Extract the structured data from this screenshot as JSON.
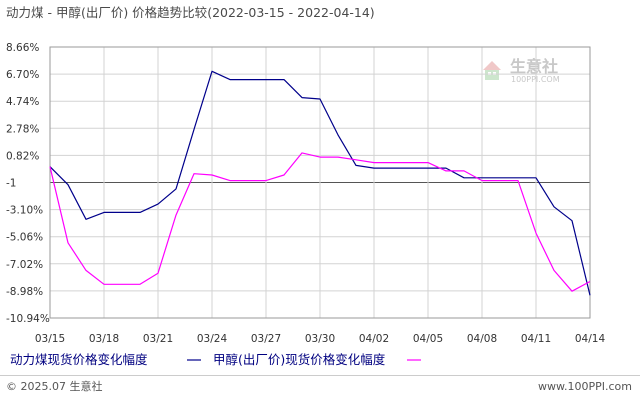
{
  "title": "动力煤 - 甲醇(出厂价) 价格趋势比较",
  "date_range": "(2022-03-15 - 2022-04-14)",
  "watermark": {
    "name": "生意社",
    "url": "100PPI.COM"
  },
  "footer": {
    "copyright": "© 2025.07 生意社",
    "url": "www.100PPI.com"
  },
  "colors": {
    "series1": "#00008b",
    "series2": "#ff00ff",
    "grid": "#d3d3d3",
    "zero_line": "#555555"
  },
  "chart_data": {
    "type": "line",
    "x": [
      "03/15",
      "03/16",
      "03/17",
      "03/18",
      "03/19",
      "03/20",
      "03/21",
      "03/22",
      "03/23",
      "03/24",
      "03/25",
      "03/26",
      "03/27",
      "03/28",
      "03/29",
      "03/30",
      "03/31",
      "04/01",
      "04/02",
      "04/03",
      "04/04",
      "04/05",
      "04/06",
      "04/07",
      "04/08",
      "04/09",
      "04/10",
      "04/11",
      "04/12",
      "04/13",
      "04/14"
    ],
    "x_tick_labels": [
      "03/15",
      "03/18",
      "03/21",
      "03/24",
      "03/27",
      "03/30",
      "04/02",
      "04/05",
      "04/08",
      "04/11",
      "04/14"
    ],
    "y_tick_labels": [
      "8.66%",
      "6.70%",
      "4.74%",
      "2.78%",
      "0.82%",
      "-1",
      "-3.10%",
      "-5.06%",
      "-7.02%",
      "-8.98%",
      "-10.94%"
    ],
    "ylim": [
      -10.94,
      8.66
    ],
    "series": [
      {
        "name": "动力煤现货价格变化幅度",
        "values": [
          0,
          -1.3,
          -3.8,
          -3.3,
          -3.3,
          -3.3,
          -2.7,
          -1.6,
          2.7,
          6.9,
          6.3,
          6.3,
          6.3,
          6.3,
          5.0,
          4.9,
          2.3,
          0.1,
          -0.1,
          -0.1,
          -0.1,
          -0.1,
          -0.1,
          -0.8,
          -0.8,
          -0.8,
          -0.8,
          -0.8,
          -2.9,
          -3.9,
          -9.3
        ]
      },
      {
        "name": "甲醇(出厂价)现货价格变化幅度",
        "values": [
          0,
          -5.5,
          -7.5,
          -8.5,
          -8.5,
          -8.5,
          -7.7,
          -3.5,
          -0.5,
          -0.6,
          -1.0,
          -1.0,
          -1.0,
          -0.6,
          1.0,
          0.7,
          0.7,
          0.5,
          0.3,
          0.3,
          0.3,
          0.3,
          -0.3,
          -0.3,
          -1.0,
          -1.0,
          -1.0,
          -4.8,
          -7.5,
          -9.0,
          -8.3
        ]
      }
    ],
    "grid": true,
    "legend_position": "bottom"
  }
}
